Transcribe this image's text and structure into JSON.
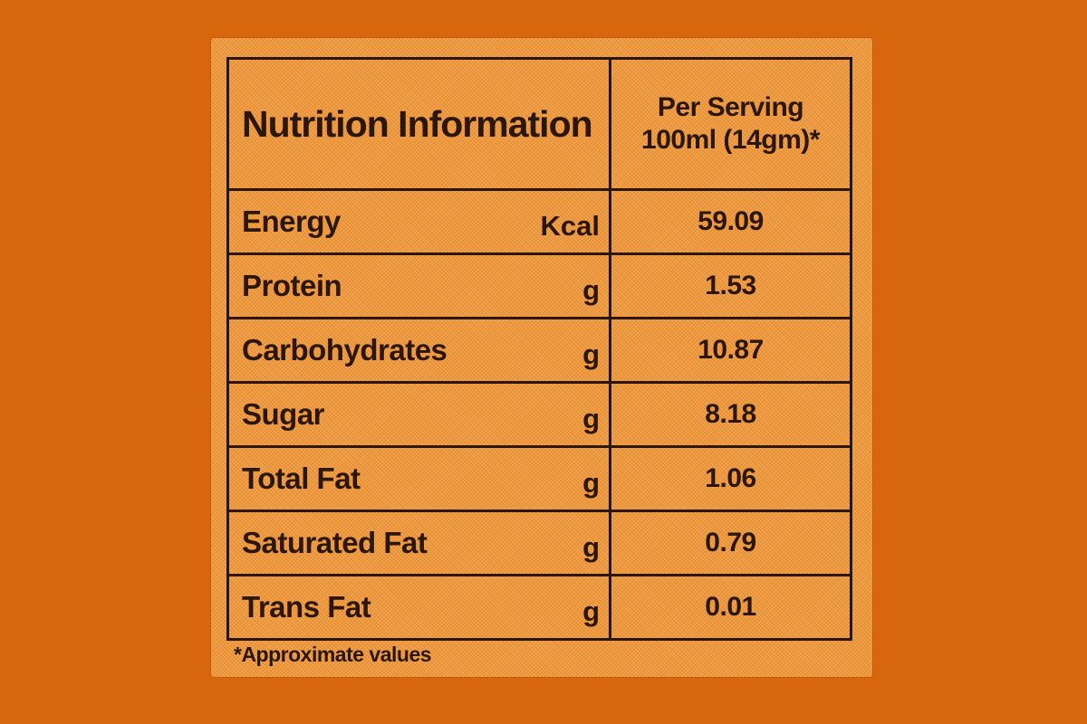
{
  "label": {
    "header": {
      "title": "Nutrition Information",
      "serving_line1": "Per Serving",
      "serving_line2": "100ml (14gm)*"
    },
    "rows": [
      {
        "name": "Energy",
        "unit": "Kcal",
        "value": "59.09"
      },
      {
        "name": "Protein",
        "unit": "g",
        "value": "1.53"
      },
      {
        "name": "Carbohydrates",
        "unit": "g",
        "value": "10.87"
      },
      {
        "name": "Sugar",
        "unit": "g",
        "value": "8.18"
      },
      {
        "name": "Total Fat",
        "unit": "g",
        "value": "1.06"
      },
      {
        "name": "Saturated Fat",
        "unit": "g",
        "value": "0.79"
      },
      {
        "name": "Trans Fat",
        "unit": "g",
        "value": "0.01"
      }
    ],
    "footnote": "*Approximate values",
    "colors": {
      "background": "#d8660d",
      "panel": "#f2a44f",
      "ink": "#2b1607"
    }
  }
}
